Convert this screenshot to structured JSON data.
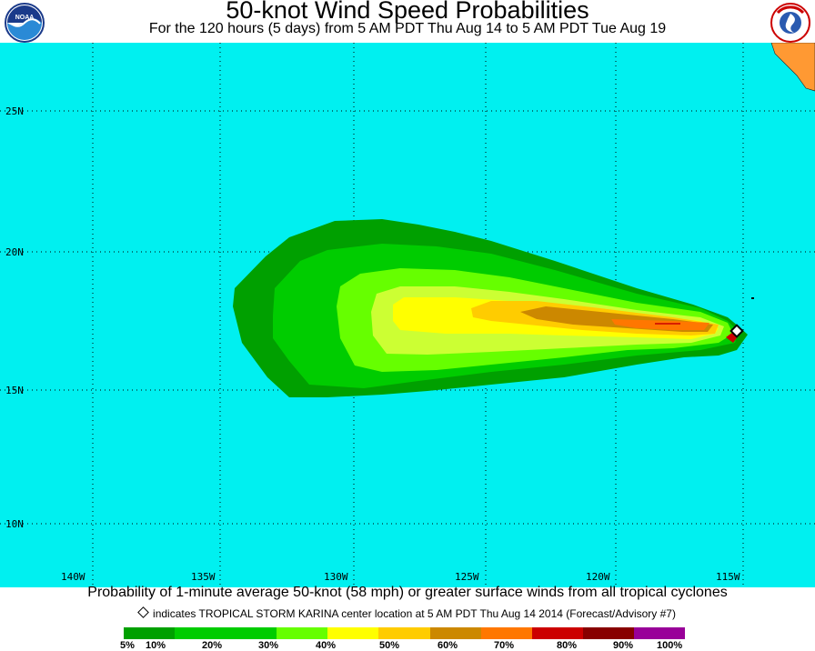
{
  "header": {
    "title": "50-knot Wind Speed Probabilities",
    "subtitle": "For the 120 hours (5 days) from 5 AM PDT Thu Aug 14 to 5 AM PDT Tue Aug 19"
  },
  "logos": {
    "noaa": "NOAA",
    "nws": "NATIONAL WEATHER SERVICE"
  },
  "map": {
    "lat_labels": [
      "25N",
      "20N",
      "15N",
      "10N"
    ],
    "lon_labels": [
      "140W",
      "135W",
      "130W",
      "125W",
      "120W",
      "115W"
    ],
    "colors": {
      "ocean": "#00f0f0",
      "land": "#ff9933"
    }
  },
  "caption": {
    "line1": "Probability of 1-minute average 50-knot (58 mph) or greater surface winds from all tropical cyclones",
    "line2": "indicates TROPICAL STORM KARINA center location at 5 AM PDT Thu Aug 14 2014 (Forecast/Advisory #7)"
  },
  "legend": {
    "colors": [
      "#00a000",
      "#00cc00",
      "#66ff00",
      "#ccff33",
      "#ffff00",
      "#ffcc00",
      "#cc8800",
      "#ff7700",
      "#cc0000",
      "#880000",
      "#660066",
      "#990099"
    ],
    "labels": [
      "5%",
      "10%",
      "20%",
      "30%",
      "40%",
      "50%",
      "60%",
      "70%",
      "80%",
      "90%",
      "100%"
    ]
  }
}
